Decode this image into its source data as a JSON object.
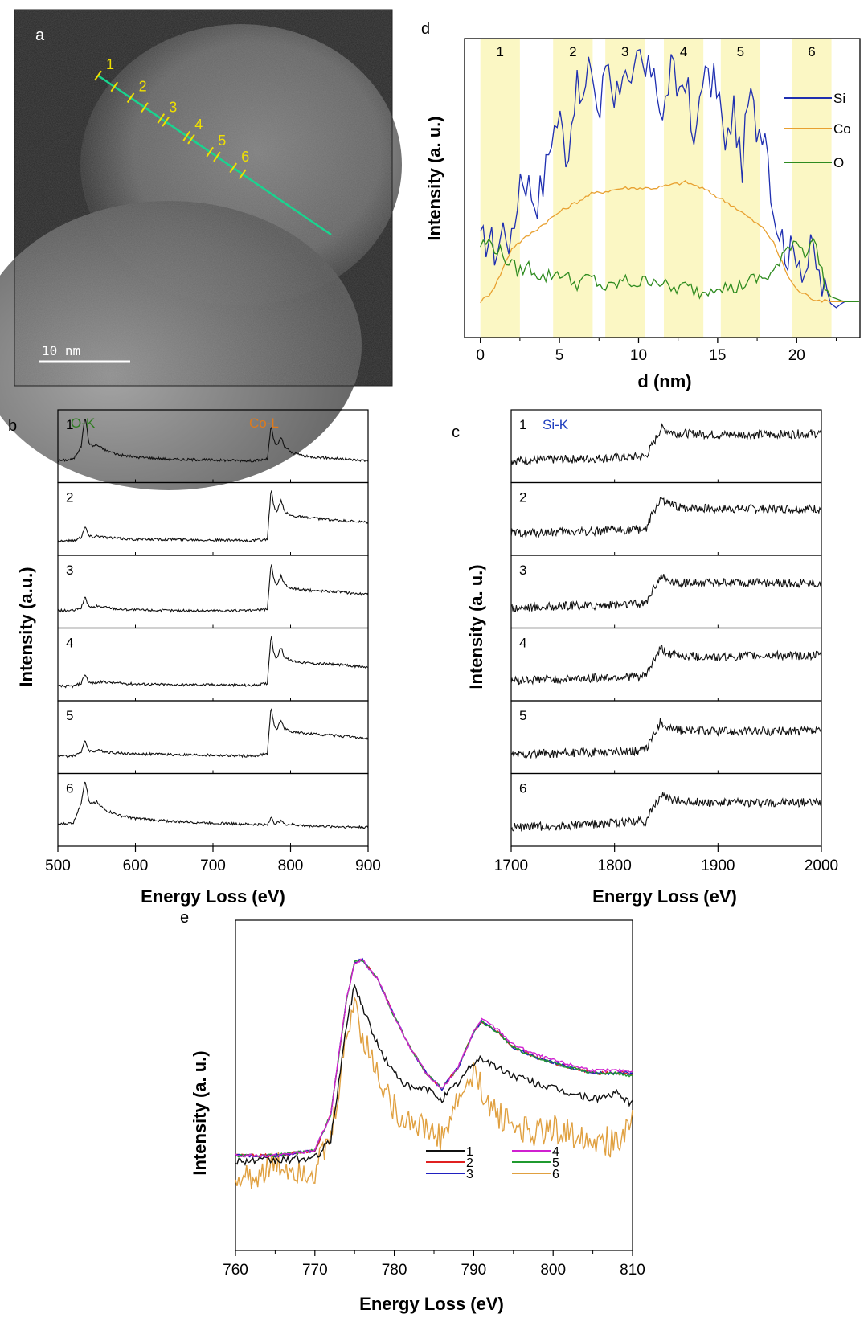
{
  "panels": {
    "a": {
      "letter": "a",
      "scale_bar_label": "10 nm",
      "markers": [
        "1",
        "2",
        "3",
        "4",
        "5",
        "6"
      ],
      "colors": {
        "background": "#2b2b2b",
        "line": "#19d48f",
        "marker": "#f0e000",
        "scale_bar": "#ffffff"
      }
    },
    "b": {
      "letter": "b",
      "ylabel": "Intensity (a.u.)",
      "xlabel": "Energy Loss (eV)",
      "edge_labels": {
        "o_k": "O-K",
        "co_l": "Co-L"
      },
      "spectrum_labels": [
        "1",
        "2",
        "3",
        "4",
        "5",
        "6"
      ],
      "x_ticks": [
        "500",
        "600",
        "700",
        "800",
        "900"
      ],
      "colors": {
        "o_k": "#2e7d1f",
        "co_l": "#e07a1a"
      }
    },
    "c": {
      "letter": "c",
      "ylabel": "Intensity (a. u.)",
      "xlabel": "Energy Loss (eV)",
      "edge_label": "Si-K",
      "spectrum_labels": [
        "1",
        "2",
        "3",
        "4",
        "5",
        "6"
      ],
      "x_ticks": [
        "1700",
        "1800",
        "1900",
        "2000"
      ],
      "colors": {
        "si_k": "#1f3fbf"
      }
    },
    "d": {
      "letter": "d",
      "ylabel": "Intensity (a. u.)",
      "xlabel": "d (nm)",
      "band_labels": [
        "1",
        "2",
        "3",
        "4",
        "5",
        "6"
      ],
      "x_ticks": [
        "0",
        "5",
        "10",
        "15",
        "20"
      ],
      "legend": [
        "Si",
        "Co",
        "O"
      ],
      "colors": {
        "si": "#1f2fb0",
        "co": "#e8a030",
        "o": "#2e8b1f",
        "band": "#fbf7c4"
      }
    },
    "e": {
      "letter": "e",
      "ylabel": "Intensity (a. u.)",
      "xlabel": "Energy Loss (eV)",
      "x_ticks": [
        "760",
        "770",
        "780",
        "790",
        "800",
        "810"
      ],
      "legend": [
        "1",
        "2",
        "3",
        "4",
        "5",
        "6"
      ],
      "colors": [
        "#111111",
        "#e02020",
        "#2020c0",
        "#d020d0",
        "#1f9a2f",
        "#e0a040"
      ]
    }
  },
  "chart_data": [
    {
      "panel": "d",
      "type": "line",
      "xlabel": "d (nm)",
      "ylabel": "Intensity (a. u.)",
      "xlim": [
        -1,
        24
      ],
      "ylim": [
        0,
        1
      ],
      "bands": [
        {
          "label": "1",
          "x": [
            0,
            2.5
          ]
        },
        {
          "label": "2",
          "x": [
            4.6,
            7.1
          ]
        },
        {
          "label": "3",
          "x": [
            7.9,
            10.4
          ]
        },
        {
          "label": "4",
          "x": [
            11.6,
            14.1
          ]
        },
        {
          "label": "5",
          "x": [
            15.2,
            17.7
          ]
        },
        {
          "label": "6",
          "x": [
            19.7,
            22.2
          ]
        }
      ],
      "series": [
        {
          "name": "Si",
          "x": [
            0,
            0.5,
            1,
            1.5,
            2,
            2.5,
            3,
            3.5,
            4,
            4.5,
            5,
            5.5,
            6,
            6.5,
            7,
            7.5,
            8,
            8.5,
            9,
            9.5,
            10,
            10.5,
            11,
            11.5,
            12,
            12.5,
            13,
            13.5,
            14,
            14.5,
            15,
            15.5,
            16,
            16.5,
            17,
            17.5,
            18,
            18.5,
            19,
            19.5,
            20,
            20.5,
            21,
            21.5,
            22,
            22.5,
            23,
            24
          ],
          "values": [
            0.3,
            0.34,
            0.28,
            0.38,
            0.3,
            0.55,
            0.52,
            0.45,
            0.52,
            0.68,
            0.74,
            0.6,
            0.84,
            0.78,
            0.93,
            0.72,
            0.96,
            0.8,
            0.91,
            0.78,
            0.95,
            0.86,
            0.93,
            0.7,
            0.9,
            0.82,
            0.89,
            0.6,
            0.9,
            0.84,
            0.86,
            0.6,
            0.78,
            0.55,
            0.82,
            0.7,
            0.72,
            0.44,
            0.34,
            0.27,
            0.3,
            0.22,
            0.3,
            0.18,
            0.12,
            0.1,
            0.12,
            0.12
          ]
        },
        {
          "name": "Co",
          "x": [
            0,
            0.5,
            1,
            1.5,
            2,
            3,
            4,
            5,
            6,
            7,
            8,
            9,
            10,
            11,
            12,
            13,
            14,
            15,
            16,
            17,
            18,
            18.5,
            19,
            19.5,
            20,
            21,
            22,
            23,
            24
          ],
          "values": [
            0.12,
            0.14,
            0.18,
            0.24,
            0.3,
            0.34,
            0.38,
            0.42,
            0.45,
            0.48,
            0.49,
            0.5,
            0.5,
            0.5,
            0.51,
            0.52,
            0.5,
            0.47,
            0.44,
            0.4,
            0.36,
            0.32,
            0.26,
            0.2,
            0.16,
            0.13,
            0.12,
            0.12,
            0.12
          ]
        },
        {
          "name": "O",
          "x": [
            0,
            0.5,
            1,
            1.5,
            2,
            2.5,
            3,
            4,
            5,
            6,
            7,
            8,
            9,
            10,
            11,
            12,
            13,
            14,
            15,
            16,
            17,
            18,
            18.5,
            19,
            19.5,
            20,
            20.5,
            21,
            21.5,
            22,
            23,
            24
          ],
          "values": [
            0.31,
            0.32,
            0.3,
            0.27,
            0.24,
            0.22,
            0.24,
            0.2,
            0.22,
            0.18,
            0.2,
            0.16,
            0.19,
            0.18,
            0.2,
            0.16,
            0.17,
            0.15,
            0.18,
            0.16,
            0.19,
            0.2,
            0.22,
            0.25,
            0.31,
            0.33,
            0.28,
            0.34,
            0.24,
            0.14,
            0.12,
            0.12
          ]
        }
      ]
    },
    {
      "panel": "b",
      "type": "line",
      "xlabel": "Energy Loss (eV)",
      "ylabel": "Intensity (a.u.)",
      "xlim": [
        500,
        900
      ],
      "x": [
        500,
        520,
        530,
        535,
        540,
        545,
        550,
        560,
        580,
        600,
        650,
        700,
        750,
        770,
        775,
        778,
        782,
        788,
        792,
        800,
        820,
        860,
        900
      ],
      "series": [
        {
          "name": "1",
          "values": [
            0.3,
            0.32,
            0.5,
            0.92,
            0.55,
            0.5,
            0.52,
            0.45,
            0.38,
            0.35,
            0.32,
            0.31,
            0.3,
            0.32,
            0.78,
            0.6,
            0.5,
            0.62,
            0.5,
            0.42,
            0.36,
            0.33,
            0.3
          ]
        },
        {
          "name": "2",
          "values": [
            0.2,
            0.2,
            0.25,
            0.4,
            0.27,
            0.25,
            0.27,
            0.25,
            0.23,
            0.22,
            0.22,
            0.21,
            0.2,
            0.22,
            0.92,
            0.7,
            0.58,
            0.76,
            0.6,
            0.55,
            0.52,
            0.48,
            0.45
          ]
        },
        {
          "name": "3",
          "values": [
            0.24,
            0.24,
            0.28,
            0.42,
            0.3,
            0.28,
            0.3,
            0.29,
            0.26,
            0.25,
            0.24,
            0.24,
            0.24,
            0.26,
            0.9,
            0.7,
            0.58,
            0.72,
            0.6,
            0.55,
            0.52,
            0.5,
            0.46
          ]
        },
        {
          "name": "4",
          "values": [
            0.2,
            0.2,
            0.24,
            0.37,
            0.25,
            0.24,
            0.25,
            0.26,
            0.24,
            0.23,
            0.22,
            0.22,
            0.21,
            0.24,
            0.92,
            0.68,
            0.58,
            0.74,
            0.6,
            0.55,
            0.52,
            0.5,
            0.46
          ]
        },
        {
          "name": "5",
          "values": [
            0.24,
            0.24,
            0.3,
            0.45,
            0.32,
            0.3,
            0.32,
            0.3,
            0.28,
            0.27,
            0.26,
            0.25,
            0.24,
            0.27,
            0.92,
            0.7,
            0.6,
            0.74,
            0.62,
            0.58,
            0.55,
            0.52,
            0.48
          ]
        },
        {
          "name": "6",
          "values": [
            0.3,
            0.32,
            0.6,
            0.92,
            0.62,
            0.58,
            0.62,
            0.5,
            0.42,
            0.38,
            0.34,
            0.32,
            0.3,
            0.3,
            0.4,
            0.32,
            0.32,
            0.36,
            0.3,
            0.3,
            0.28,
            0.27,
            0.26
          ]
        }
      ]
    },
    {
      "panel": "c",
      "type": "line",
      "xlabel": "Energy Loss (eV)",
      "ylabel": "Intensity (a. u.)",
      "xlim": [
        1700,
        2000
      ],
      "x": [
        1700,
        1750,
        1800,
        1830,
        1838,
        1845,
        1850,
        1860,
        1900,
        1950,
        2000
      ],
      "series": [
        {
          "name": "1",
          "values": [
            0.3,
            0.32,
            0.34,
            0.36,
            0.55,
            0.75,
            0.72,
            0.68,
            0.66,
            0.66,
            0.68
          ]
        },
        {
          "name": "2",
          "values": [
            0.3,
            0.32,
            0.34,
            0.36,
            0.6,
            0.78,
            0.72,
            0.66,
            0.64,
            0.64,
            0.64
          ]
        },
        {
          "name": "3",
          "values": [
            0.28,
            0.3,
            0.32,
            0.34,
            0.56,
            0.72,
            0.66,
            0.62,
            0.62,
            0.62,
            0.62
          ]
        },
        {
          "name": "4",
          "values": [
            0.28,
            0.3,
            0.32,
            0.34,
            0.56,
            0.72,
            0.66,
            0.62,
            0.6,
            0.62,
            0.62
          ]
        },
        {
          "name": "5",
          "values": [
            0.26,
            0.28,
            0.3,
            0.32,
            0.54,
            0.72,
            0.64,
            0.6,
            0.58,
            0.58,
            0.58
          ]
        },
        {
          "name": "6",
          "values": [
            0.26,
            0.28,
            0.32,
            0.34,
            0.54,
            0.72,
            0.66,
            0.62,
            0.6,
            0.6,
            0.6
          ]
        }
      ]
    },
    {
      "panel": "e",
      "type": "line",
      "xlabel": "Energy Loss (eV)",
      "ylabel": "Intensity (a. u.)",
      "xlim": [
        760,
        810
      ],
      "x": [
        760,
        765,
        770,
        772,
        774,
        775,
        776,
        778,
        780,
        782,
        784,
        786,
        788,
        790,
        791,
        793,
        795,
        798,
        800,
        805,
        808,
        810
      ],
      "series": [
        {
          "name": "1",
          "values": [
            0.22,
            0.22,
            0.23,
            0.3,
            0.75,
            0.9,
            0.82,
            0.66,
            0.56,
            0.5,
            0.5,
            0.46,
            0.52,
            0.6,
            0.62,
            0.58,
            0.55,
            0.52,
            0.5,
            0.46,
            0.48,
            0.44
          ]
        },
        {
          "name": "2",
          "values": [
            0.24,
            0.24,
            0.26,
            0.4,
            0.85,
            0.99,
            1.0,
            0.92,
            0.78,
            0.66,
            0.56,
            0.5,
            0.58,
            0.72,
            0.76,
            0.72,
            0.66,
            0.62,
            0.6,
            0.56,
            0.56,
            0.56
          ]
        },
        {
          "name": "3",
          "values": [
            0.24,
            0.24,
            0.26,
            0.4,
            0.85,
            0.99,
            1.0,
            0.92,
            0.78,
            0.66,
            0.56,
            0.5,
            0.58,
            0.72,
            0.76,
            0.72,
            0.66,
            0.62,
            0.6,
            0.56,
            0.56,
            0.56
          ]
        },
        {
          "name": "4",
          "values": [
            0.24,
            0.24,
            0.26,
            0.4,
            0.85,
            0.99,
            1.0,
            0.92,
            0.78,
            0.66,
            0.56,
            0.5,
            0.58,
            0.72,
            0.77,
            0.73,
            0.67,
            0.63,
            0.61,
            0.57,
            0.57,
            0.57
          ]
        },
        {
          "name": "5",
          "values": [
            0.24,
            0.24,
            0.26,
            0.4,
            0.85,
            0.99,
            1.0,
            0.92,
            0.78,
            0.66,
            0.56,
            0.5,
            0.58,
            0.72,
            0.76,
            0.72,
            0.66,
            0.62,
            0.6,
            0.56,
            0.56,
            0.55
          ]
        },
        {
          "name": "6",
          "values": [
            0.14,
            0.2,
            0.18,
            0.3,
            0.7,
            0.85,
            0.7,
            0.55,
            0.42,
            0.38,
            0.34,
            0.3,
            0.45,
            0.55,
            0.5,
            0.4,
            0.36,
            0.33,
            0.34,
            0.32,
            0.28,
            0.42
          ]
        }
      ]
    }
  ]
}
